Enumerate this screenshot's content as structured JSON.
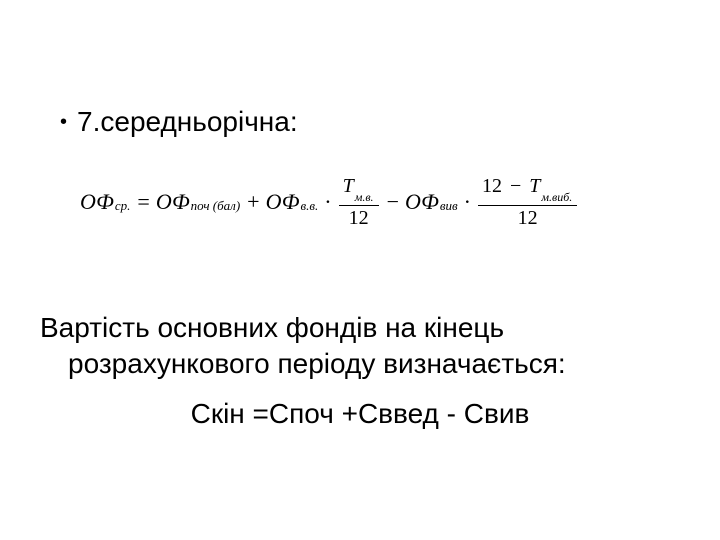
{
  "colors": {
    "background": "#ffffff",
    "text": "#000000",
    "formula_bar": "#000000"
  },
  "typography": {
    "body_font": "Arial",
    "body_size_pt": 28,
    "formula_font": "Times New Roman",
    "formula_size_pt": 22,
    "formula_sub_size_pt": 13
  },
  "bullet": {
    "marker": "•",
    "text": "7.середньорічна:"
  },
  "formula": {
    "lhs_sym": "ОФ",
    "lhs_sub": "ср.",
    "eq": "=",
    "t1_sym": "ОФ",
    "t1_sub": "поч (бал)",
    "plus": "+",
    "t2_sym": "ОФ",
    "t2_sub": "в.в.",
    "dot": "·",
    "frac1_num_sym": "Т",
    "frac1_num_sub": "м.в.",
    "frac1_den": "12",
    "minus": "−",
    "t3_sym": "ОФ",
    "t3_sub": "вив",
    "frac2_num_left": "12",
    "frac2_num_minus": "−",
    "frac2_num_sym": "Т",
    "frac2_num_sub": "м.виб.",
    "frac2_den": "12"
  },
  "body": {
    "line1": "Вартість основних фондів на кінець",
    "line2": "розрахункового періоду визначається:"
  },
  "equation": {
    "text": "Скін =Споч +Сввед - Свив"
  }
}
